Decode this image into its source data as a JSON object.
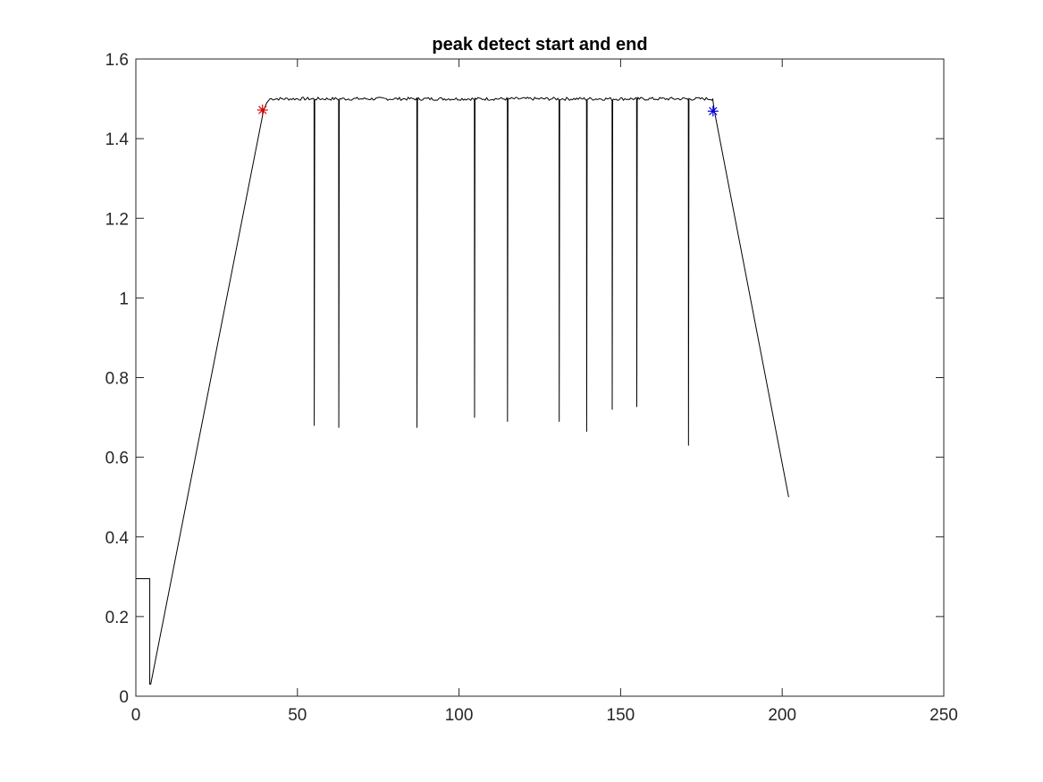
{
  "chart_data": {
    "type": "line",
    "title": "peak detect start and end",
    "xlabel": "",
    "ylabel": "",
    "xlim": [
      0,
      250
    ],
    "ylim": [
      0,
      1.6
    ],
    "x_ticks": [
      0,
      50,
      100,
      150,
      200,
      250
    ],
    "y_ticks": [
      0,
      0.2,
      0.4,
      0.6,
      0.8,
      1,
      1.2,
      1.4,
      1.6
    ],
    "x_tick_labels": [
      "0",
      "50",
      "100",
      "150",
      "200",
      "250"
    ],
    "y_tick_labels": [
      "0",
      "0.2",
      "0.4",
      "0.6",
      "0.8",
      "1",
      "1.2",
      "1.4",
      "1.6"
    ],
    "grid": false,
    "box": true,
    "series": [
      {
        "color": "#000000",
        "points": [
          [
            0,
            0.295
          ],
          [
            4.3,
            0.295
          ],
          [
            4.3,
            0.03
          ],
          [
            4.6,
            0.03
          ],
          [
            39.5,
            1.47
          ],
          [
            40.5,
            1.49
          ],
          [
            41.5,
            1.5
          ],
          [
            178.5,
            1.5
          ],
          [
            179,
            1.47
          ],
          [
            202,
            0.5
          ]
        ],
        "plateau": {
          "x_start": 40.5,
          "x_end": 178.5,
          "level": 1.5,
          "noise": 0.004
        },
        "spikes": [
          {
            "x": 55.2,
            "min": 0.68
          },
          {
            "x": 62.8,
            "min": 0.675
          },
          {
            "x": 87.0,
            "min": 0.675
          },
          {
            "x": 104.8,
            "min": 0.7
          },
          {
            "x": 115.0,
            "min": 0.69
          },
          {
            "x": 131.0,
            "min": 0.69
          },
          {
            "x": 139.5,
            "min": 0.665
          },
          {
            "x": 147.4,
            "min": 0.72
          },
          {
            "x": 155.0,
            "min": 0.727
          },
          {
            "x": 171.0,
            "min": 0.63
          }
        ]
      }
    ],
    "markers": [
      {
        "x": 39.2,
        "y": 1.472,
        "color": "#e00000",
        "symbol": "asterisk"
      },
      {
        "x": 178.6,
        "y": 1.469,
        "color": "#0000e0",
        "symbol": "asterisk"
      }
    ]
  }
}
